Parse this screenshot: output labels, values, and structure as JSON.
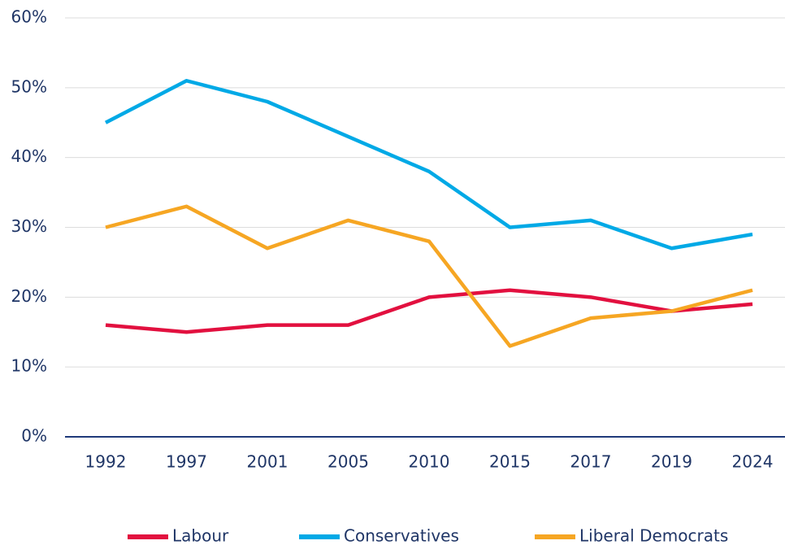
{
  "chart_data": {
    "type": "line",
    "categories": [
      "1992",
      "1997",
      "2001",
      "2005",
      "2010",
      "2015",
      "2017",
      "2019",
      "2024"
    ],
    "series": [
      {
        "name": "Labour",
        "color": "#e2103f",
        "values": [
          16,
          15,
          16,
          16,
          20,
          21,
          20,
          18,
          19
        ]
      },
      {
        "name": "Conservatives",
        "color": "#00a9e6",
        "values": [
          45,
          51,
          48,
          43,
          38,
          30,
          31,
          27,
          29
        ]
      },
      {
        "name": "Liberal Democrats",
        "color": "#f6a623",
        "values": [
          30,
          33,
          27,
          31,
          28,
          13,
          17,
          18,
          21
        ]
      }
    ],
    "ylim": [
      0,
      60
    ],
    "yticks": [
      {
        "value": 0,
        "label": "0%"
      },
      {
        "value": 10,
        "label": "10%"
      },
      {
        "value": 20,
        "label": "20%"
      },
      {
        "value": 30,
        "label": "30%"
      },
      {
        "value": 40,
        "label": "40%"
      },
      {
        "value": 50,
        "label": "50%"
      },
      {
        "value": 60,
        "label": "60%"
      }
    ],
    "grid": true,
    "legend": "bottom"
  }
}
